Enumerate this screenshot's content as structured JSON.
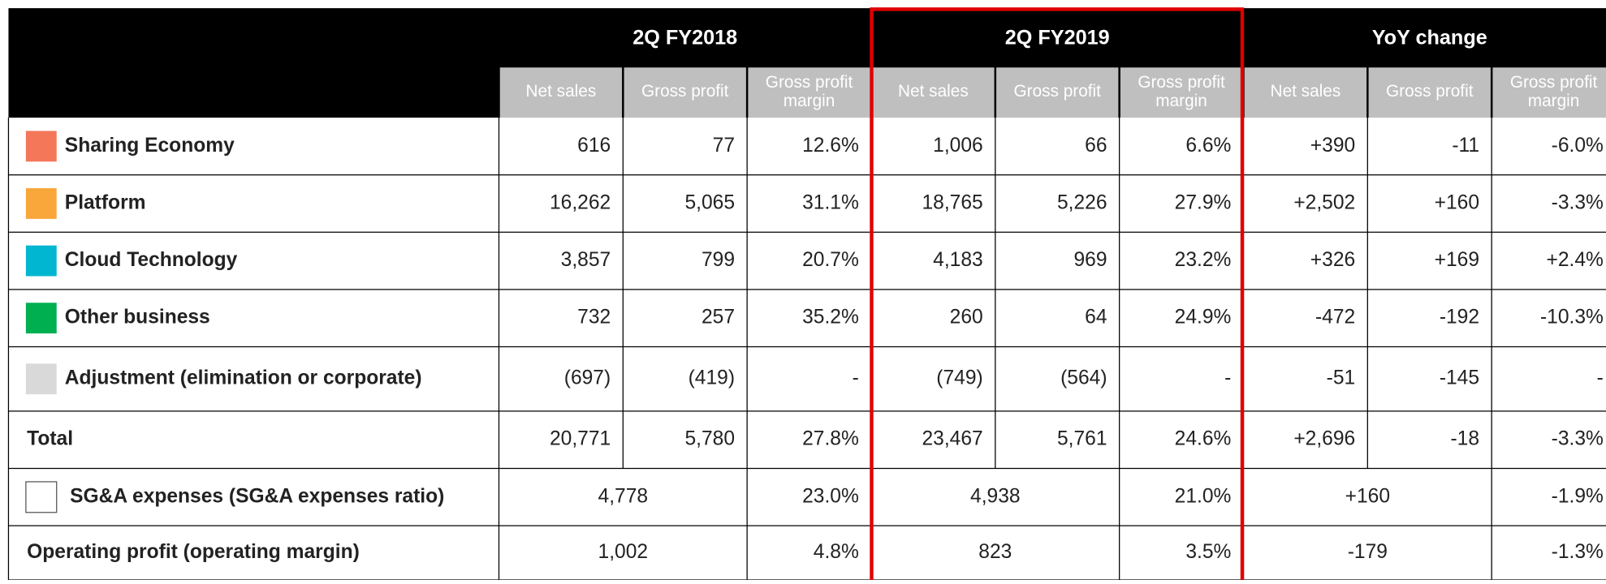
{
  "table": {
    "groups": [
      "2Q FY2018",
      "2Q FY2019",
      "YoY change"
    ],
    "subheaders": [
      "Net sales",
      "Gross profit",
      "Gross profit margin"
    ],
    "rows": [
      {
        "label": "Sharing Economy",
        "color": "#f4775a",
        "cells": [
          "616",
          "77",
          "12.6%",
          "1,006",
          "66",
          "6.6%",
          "+390",
          "-11",
          "-6.0%"
        ]
      },
      {
        "label": "Platform",
        "color": "#f9a73a",
        "cells": [
          "16,262",
          "5,065",
          "31.1%",
          "18,765",
          "5,226",
          "27.9%",
          "+2,502",
          "+160",
          "-3.3%"
        ]
      },
      {
        "label": "Cloud Technology",
        "color": "#00b6d0",
        "cells": [
          "3,857",
          "799",
          "20.7%",
          "4,183",
          "969",
          "23.2%",
          "+326",
          "+169",
          "+2.4%"
        ]
      },
      {
        "label": "Other business",
        "color": "#00b050",
        "cells": [
          "732",
          "257",
          "35.2%",
          "260",
          "64",
          "24.9%",
          "-472",
          "-192",
          "-10.3%"
        ]
      },
      {
        "label": "Adjustment (elimination or corporate)",
        "color": "#d9d9d9",
        "cells": [
          "(697)",
          "(419)",
          "-",
          "(749)",
          "(564)",
          "-",
          "-51",
          "-145",
          "-"
        ]
      },
      {
        "label": "Total",
        "cells": [
          "20,771",
          "5,780",
          "27.8%",
          "23,467",
          "5,761",
          "24.6%",
          "+2,696",
          "-18",
          "-3.3%"
        ]
      },
      {
        "label": "SG&A expenses (SG&A expenses ratio)",
        "color": "#ffffff",
        "cells": [
          "4,778",
          "23.0%",
          "4,938",
          "21.0%",
          "+160",
          "-1.9%"
        ]
      },
      {
        "label": "Operating profit (operating margin)",
        "cells": [
          "1,002",
          "4.8%",
          "823",
          "3.5%",
          "-179",
          "-1.3%"
        ]
      }
    ]
  }
}
